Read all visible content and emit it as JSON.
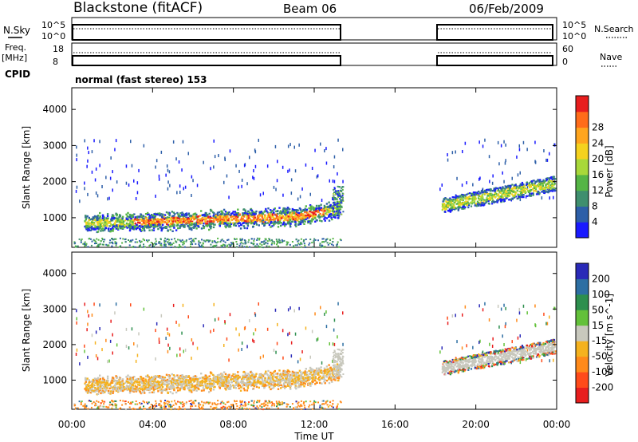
{
  "header": {
    "station": "Blackstone (fitACF)",
    "beam": "Beam 06",
    "date": "06/Feb/2009"
  },
  "left_labels": {
    "nsky": "N.Sky",
    "freq": "Freq.",
    "freq_unit": "[MHz]",
    "cpid": "CPID"
  },
  "right_labels": {
    "nsearch": "N.Search",
    "nave": "Nave"
  },
  "cpid_text": "normal (fast stereo) 153",
  "noise_panel": {
    "left_ticks": [
      "10^5",
      "10^0"
    ],
    "right_ticks": [
      "10^5",
      "10^0"
    ]
  },
  "freq_panel": {
    "left_ticks": [
      "18",
      "8"
    ],
    "right_ticks": [
      "60",
      "0"
    ]
  },
  "chart_data": [
    {
      "type": "heatmap",
      "name": "power",
      "ylabel": "Slant Range [km]",
      "yticks": [
        1000,
        2000,
        3000,
        4000
      ],
      "colorbar": {
        "label": "Power [dB]",
        "tick_labels": [
          "4",
          "8",
          "12",
          "16",
          "20",
          "24",
          "28"
        ],
        "colors": [
          "#1a1aff",
          "#2d5fa8",
          "#3f8f6e",
          "#55b545",
          "#a8d83a",
          "#f5d21e",
          "#ffa51e",
          "#ff6c1a",
          "#e81e1e"
        ]
      },
      "data_gap_hours": [
        13.4,
        18.2
      ],
      "echo_bands": [
        {
          "x0": 0.6,
          "x1": 13.2,
          "y0": 700,
          "y1": 1100,
          "level": "high"
        },
        {
          "x0": 18.3,
          "x1": 23.9,
          "y0": 1200,
          "y1": 1700,
          "level": "medium"
        }
      ]
    },
    {
      "type": "heatmap",
      "name": "velocity",
      "ylabel": "Slant Range [km]",
      "yticks": [
        1000,
        2000,
        3000,
        4000
      ],
      "colorbar": {
        "label": "Velocity [m s^-1]",
        "tick_labels": [
          "200",
          "100",
          "50",
          "15",
          "-15",
          "-50",
          "-100",
          "-200"
        ],
        "colors": [
          "#2a2ab8",
          "#2d6fa3",
          "#2d8f4e",
          "#63c13a",
          "#c8c8bd",
          "#f5b21e",
          "#ff8a1a",
          "#ff4b1a",
          "#e81e1e"
        ]
      }
    }
  ],
  "x_axis": {
    "tick_labels": [
      "00:00",
      "04:00",
      "08:00",
      "12:00",
      "16:00",
      "20:00",
      "00:00"
    ],
    "label": "Time UT"
  }
}
